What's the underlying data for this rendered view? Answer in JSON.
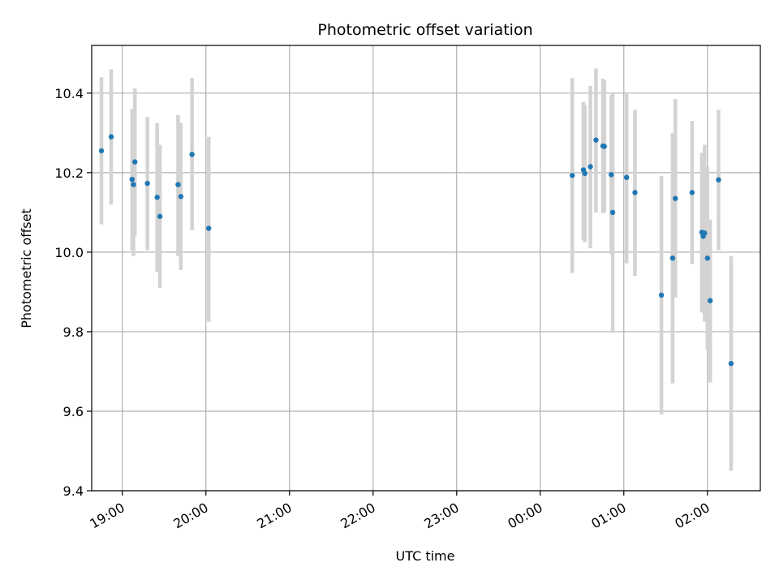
{
  "chart_data": {
    "type": "scatter",
    "title": "Photometric offset variation",
    "xlabel": "UTC time",
    "ylabel": "Photometric offset",
    "grid": true,
    "x_axis": {
      "kind": "time",
      "unit": "hours (UTC)",
      "range": [
        "18:38",
        "02:38"
      ],
      "tick_values": [
        "19:00",
        "20:00",
        "21:00",
        "22:00",
        "23:00",
        "00:00",
        "01:00",
        "02:00"
      ]
    },
    "ylim": [
      9.4,
      10.52
    ],
    "y_ticks": [
      "9.4",
      "9.6",
      "9.8",
      "10.0",
      "10.2",
      "10.4"
    ],
    "colors": {
      "marker": "#1f77b4",
      "errorbar": "#d3d3d3",
      "grid": "#b0b0b0"
    },
    "series": [
      {
        "points": [
          {
            "t": "18:45",
            "y": 10.255,
            "lo": 10.07,
            "hi": 10.44
          },
          {
            "t": "18:52",
            "y": 10.29,
            "lo": 10.12,
            "hi": 10.46
          },
          {
            "t": "19:07",
            "y": 10.183,
            "lo": 10.005,
            "hi": 10.36
          },
          {
            "t": "19:08",
            "y": 10.17,
            "lo": 9.99,
            "hi": 10.355
          },
          {
            "t": "19:09",
            "y": 10.227,
            "lo": 10.04,
            "hi": 10.412
          },
          {
            "t": "19:18",
            "y": 10.173,
            "lo": 10.005,
            "hi": 10.34
          },
          {
            "t": "19:25",
            "y": 10.138,
            "lo": 9.95,
            "hi": 10.325
          },
          {
            "t": "19:27",
            "y": 10.09,
            "lo": 9.91,
            "hi": 10.27
          },
          {
            "t": "19:40",
            "y": 10.17,
            "lo": 9.99,
            "hi": 10.345
          },
          {
            "t": "19:42",
            "y": 10.14,
            "lo": 9.955,
            "hi": 10.325
          },
          {
            "t": "19:50",
            "y": 10.246,
            "lo": 10.055,
            "hi": 10.438
          },
          {
            "t": "20:02",
            "y": 10.06,
            "lo": 9.825,
            "hi": 10.29
          },
          {
            "t": "00:23",
            "y": 10.193,
            "lo": 9.948,
            "hi": 10.438
          },
          {
            "t": "00:31",
            "y": 10.207,
            "lo": 10.03,
            "hi": 10.378
          },
          {
            "t": "00:32",
            "y": 10.198,
            "lo": 10.025,
            "hi": 10.37
          },
          {
            "t": "00:36",
            "y": 10.215,
            "lo": 10.01,
            "hi": 10.418
          },
          {
            "t": "00:40",
            "y": 10.282,
            "lo": 10.1,
            "hi": 10.462
          },
          {
            "t": "00:45",
            "y": 10.267,
            "lo": 10.098,
            "hi": 10.436
          },
          {
            "t": "00:46",
            "y": 10.266,
            "lo": 10.1,
            "hi": 10.432
          },
          {
            "t": "00:51",
            "y": 10.195,
            "lo": 9.995,
            "hi": 10.395
          },
          {
            "t": "00:52",
            "y": 10.1,
            "lo": 9.8,
            "hi": 10.4
          },
          {
            "t": "01:02",
            "y": 10.188,
            "lo": 9.972,
            "hi": 10.403
          },
          {
            "t": "01:08",
            "y": 10.15,
            "lo": 9.94,
            "hi": 10.358
          },
          {
            "t": "01:27",
            "y": 9.892,
            "lo": 9.592,
            "hi": 10.192
          },
          {
            "t": "01:35",
            "y": 9.985,
            "lo": 9.67,
            "hi": 10.3
          },
          {
            "t": "01:37",
            "y": 10.135,
            "lo": 9.886,
            "hi": 10.385
          },
          {
            "t": "01:49",
            "y": 10.15,
            "lo": 9.97,
            "hi": 10.33
          },
          {
            "t": "01:56",
            "y": 10.05,
            "lo": 9.848,
            "hi": 10.25
          },
          {
            "t": "01:57",
            "y": 10.04,
            "lo": 9.85,
            "hi": 10.23
          },
          {
            "t": "01:58",
            "y": 10.048,
            "lo": 9.825,
            "hi": 10.27
          },
          {
            "t": "02:00",
            "y": 9.985,
            "lo": 9.755,
            "hi": 10.215
          },
          {
            "t": "02:02",
            "y": 9.878,
            "lo": 9.672,
            "hi": 10.082
          },
          {
            "t": "02:08",
            "y": 10.182,
            "lo": 10.005,
            "hi": 10.358
          },
          {
            "t": "02:17",
            "y": 9.72,
            "lo": 9.45,
            "hi": 9.99
          }
        ]
      }
    ]
  }
}
